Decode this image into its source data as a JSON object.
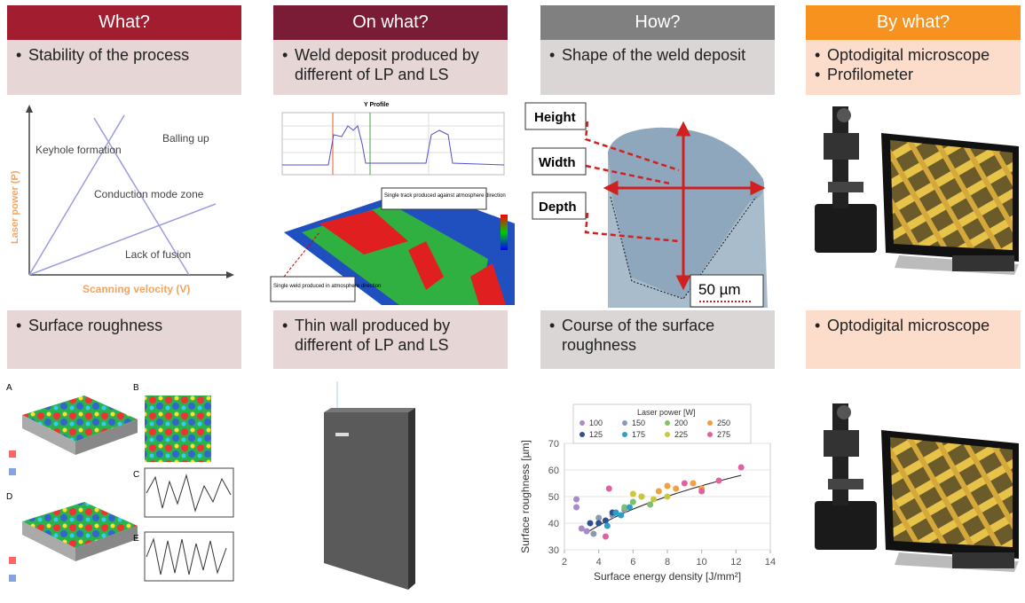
{
  "columns": [
    {
      "header": "What?",
      "top": [
        "Stability of the process"
      ],
      "bottom": [
        "Surface roughness"
      ]
    },
    {
      "header": "On what?",
      "top": [
        "Weld deposit produced by different of LP and LS"
      ],
      "bottom": [
        "Thin wall produced by different of LP and LS"
      ]
    },
    {
      "header": "How?",
      "top": [
        "Shape of the weld deposit"
      ],
      "bottom": [
        "Course of the surface roughness"
      ]
    },
    {
      "header": "By what?",
      "top": [
        "Optodigital microscope",
        "Profilometer"
      ],
      "bottom": [
        "Optodigital microscope"
      ]
    }
  ],
  "process_map": {
    "y_label": "Laser power (P)",
    "x_label": "Scanning velocity (V)",
    "regions": [
      "Keyhole formation",
      "Balling up",
      "Conduction mode zone",
      "Lack of fusion"
    ]
  },
  "weld_profile": {
    "title": "Y Profile",
    "callouts": [
      "Single track produced against atmosphere direction",
      "Single weld produced in atmosphere direction"
    ]
  },
  "weld_shape": {
    "labels": [
      "Height",
      "Width",
      "Depth"
    ],
    "scale_bar": "50 µm"
  },
  "roughness_maps": {
    "panels": [
      "A",
      "B",
      "C",
      "D",
      "E"
    ]
  },
  "roughness_chart": {
    "type": "scatter",
    "legend_title": "Laser power [W]",
    "x_label": "Surface energy density [J/mm²]",
    "y_label": "Surface roughness [µm]",
    "xlim": [
      2,
      14
    ],
    "xticks": [
      2,
      4,
      6,
      8,
      10,
      12,
      14
    ],
    "ylim": [
      30,
      70
    ],
    "yticks": [
      30,
      40,
      50,
      60,
      70
    ],
    "series": [
      {
        "name": "100",
        "color": "#a88bc7",
        "x": [
          2.7,
          2.7,
          3.0,
          3.3
        ],
        "values": [
          49,
          46,
          38,
          37
        ]
      },
      {
        "name": "150",
        "color": "#8a9bb0",
        "x": [
          3.7,
          4.0,
          4.8,
          5.5
        ],
        "values": [
          36,
          42,
          43,
          45
        ]
      },
      {
        "name": "200",
        "color": "#7fbf6a",
        "x": [
          5.5,
          6.0,
          6.5,
          7.0
        ],
        "values": [
          46,
          48,
          50,
          47
        ]
      },
      {
        "name": "250",
        "color": "#f0a040",
        "x": [
          7.5,
          8.0,
          8.5,
          9.5,
          10.0
        ],
        "values": [
          52,
          54,
          53,
          55,
          53
        ]
      },
      {
        "name": "125",
        "color": "#2f4f8f",
        "x": [
          3.5,
          4.0,
          4.4,
          4.8
        ],
        "values": [
          40,
          40,
          41,
          44
        ]
      },
      {
        "name": "175",
        "color": "#2aa0c8",
        "x": [
          4.5,
          5.0,
          5.3,
          5.8
        ],
        "values": [
          39,
          44,
          43,
          46
        ]
      },
      {
        "name": "225",
        "color": "#c8c840",
        "x": [
          6.0,
          6.5,
          7.2,
          8.0
        ],
        "values": [
          51,
          50,
          49,
          50
        ]
      },
      {
        "name": "275",
        "color": "#e060a0",
        "x": [
          4.4,
          4.6,
          9.0,
          10.0,
          11.0,
          12.3
        ],
        "values": [
          35,
          53,
          55,
          52,
          56,
          61
        ]
      }
    ]
  }
}
